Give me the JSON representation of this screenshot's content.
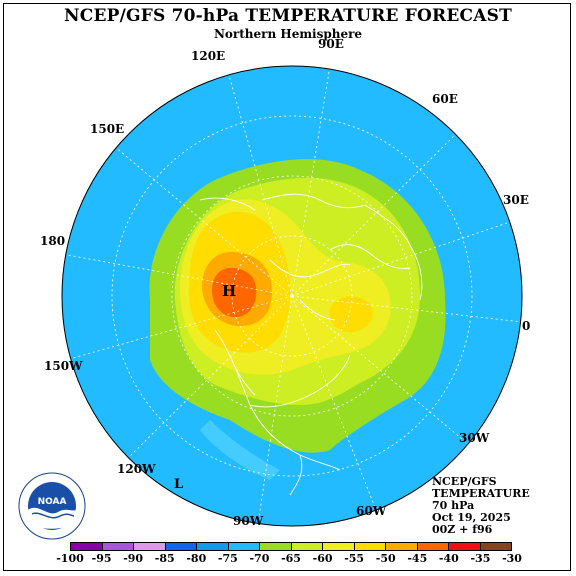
{
  "title": "NCEP/GFS 70-hPa TEMPERATURE FORECAST",
  "subtitle": "Northern Hemisphere",
  "longitude_labels": [
    "90E",
    "120E",
    "60E",
    "150E",
    "30E",
    "180",
    "0",
    "150W",
    "30W",
    "120W",
    "60W",
    "90W"
  ],
  "map_markers": {
    "high": "H",
    "low": "L"
  },
  "info_block": [
    "NCEP/GFS",
    "TEMPERATURE",
    "70 hPa",
    "Oct 19, 2025",
    "00Z + f96"
  ],
  "colorbar": {
    "labels": [
      "-100",
      "-95",
      "-90",
      "-85",
      "-80",
      "-75",
      "-70",
      "-65",
      "-60",
      "-55",
      "-50",
      "-45",
      "-40",
      "-35",
      "-30"
    ],
    "colors": [
      "#8800aa",
      "#aa55dd",
      "#dd99ee",
      "#1166ee",
      "#1199ee",
      "#22bbff",
      "#99dd22",
      "#ccee22",
      "#eeee22",
      "#ffdd00",
      "#ffaa00",
      "#ff6600",
      "#ee1111",
      "#884422"
    ]
  },
  "palette": {
    "ocean_cold": "#22bbff",
    "band_minus70": "#99dd22",
    "band_minus65": "#ccee22",
    "band_minus60": "#eeee22",
    "band_minus55": "#ffdd00",
    "band_minus50": "#ffaa00",
    "band_minus45": "#ff6600"
  },
  "logo": {
    "text": "NOAA",
    "ring_text": "NATIONAL OCEANIC AND ATMOSPHERIC ADMINISTRATION · U.S. DEPARTMENT OF COMMERCE"
  }
}
